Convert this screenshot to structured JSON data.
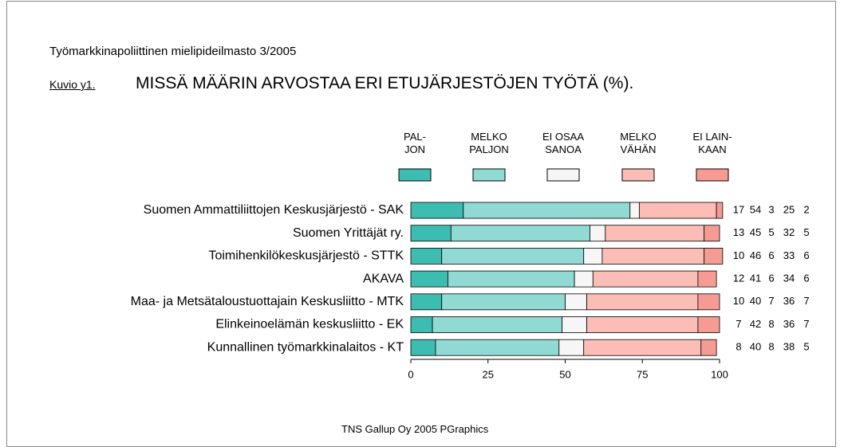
{
  "chart_data": {
    "type": "stacked-bar-horizontal",
    "supertitle": "Työmarkkinapoliittinen mielipideilmasto 3/2005",
    "figure_label": "Kuvio y1.",
    "title": "MISSÄ MÄÄRIN ARVOSTAA ERI ETUJÄRJESTÖJEN TYÖTÄ (%).",
    "footer": "TNS Gallup Oy  2005  PGraphics",
    "categories": [
      "Suomen Ammattiliittojen Keskusjärjestö - SAK",
      "Suomen Yrittäjät ry.",
      "Toimihenkilökeskusjärjestö - STTK",
      "AKAVA",
      "Maa- ja Metsätaloustuottajain Keskusliitto - MTK",
      "Elinkeinoelämän keskusliitto - EK",
      "Kunnallinen työmarkkinalaitos - KT"
    ],
    "series": [
      {
        "name": "PAL-\nJON",
        "color": "#3dbdb1",
        "values": [
          17,
          13,
          10,
          12,
          10,
          7,
          8
        ]
      },
      {
        "name": "MELKO\nPALJON",
        "color": "#90dad3",
        "values": [
          54,
          45,
          46,
          41,
          40,
          42,
          40
        ]
      },
      {
        "name": "EI OSAA\nSANOA",
        "color": "#f6f6f6",
        "values": [
          3,
          5,
          6,
          6,
          7,
          8,
          8
        ]
      },
      {
        "name": "MELKO\nVÄHÄN",
        "color": "#fbbdb5",
        "values": [
          25,
          32,
          33,
          34,
          36,
          36,
          38
        ]
      },
      {
        "name": "EI LAIN-\nKAAN",
        "color": "#f69b94",
        "values": [
          2,
          5,
          6,
          6,
          7,
          7,
          5
        ]
      }
    ],
    "xlim": [
      0,
      100
    ],
    "xticks": [
      0,
      25,
      50,
      75,
      100
    ]
  }
}
